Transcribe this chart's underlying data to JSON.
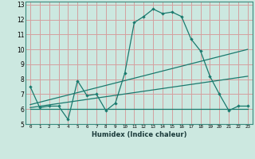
{
  "title": "",
  "xlabel": "Humidex (Indice chaleur)",
  "bg_color": "#cce8e0",
  "grid_color": "#d4a0a0",
  "line_color": "#1a7a6e",
  "xlim": [
    -0.5,
    23.5
  ],
  "ylim": [
    5,
    13.2
  ],
  "yticks": [
    5,
    6,
    7,
    8,
    9,
    10,
    11,
    12,
    13
  ],
  "xticks": [
    0,
    1,
    2,
    3,
    4,
    5,
    6,
    7,
    8,
    9,
    10,
    11,
    12,
    13,
    14,
    15,
    16,
    17,
    18,
    19,
    20,
    21,
    22,
    23
  ],
  "line1_x": [
    0,
    1,
    2,
    3,
    4,
    5,
    6,
    7,
    8,
    9,
    10,
    11,
    12,
    13,
    14,
    15,
    16,
    17,
    18,
    19,
    20,
    21,
    22,
    23
  ],
  "line1_y": [
    7.5,
    6.1,
    6.2,
    6.2,
    5.3,
    7.9,
    6.9,
    7.0,
    5.9,
    6.4,
    8.4,
    11.8,
    12.2,
    12.7,
    12.4,
    12.5,
    12.2,
    10.7,
    9.9,
    8.2,
    7.0,
    5.9,
    6.2,
    6.2
  ],
  "line2_x": [
    0,
    23
  ],
  "line2_y": [
    6.0,
    6.0
  ],
  "line3_x": [
    0,
    23
  ],
  "line3_y": [
    6.3,
    10.0
  ],
  "line4_x": [
    0,
    23
  ],
  "line4_y": [
    6.1,
    8.2
  ]
}
